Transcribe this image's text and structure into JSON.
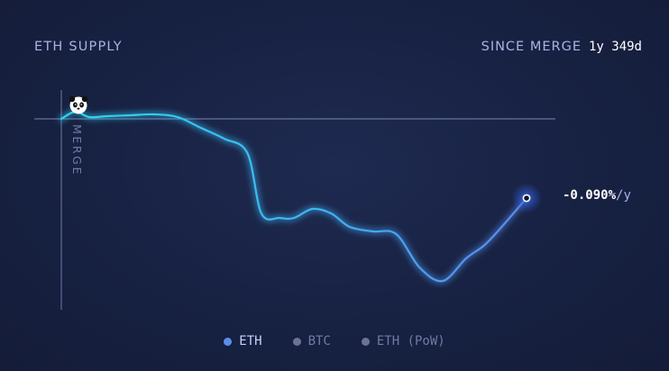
{
  "header": {
    "title": "ETH SUPPLY",
    "since_label": "SINCE MERGE",
    "since_value": "1y 349d"
  },
  "merge_label": "MERGE",
  "end_value": {
    "number": "-0.090%",
    "unit": "/y"
  },
  "legend": [
    {
      "label": "ETH",
      "active": true,
      "color": "#5b8fe8"
    },
    {
      "label": "BTC",
      "active": false,
      "color": "#6b7391"
    },
    {
      "label": "ETH (PoW)",
      "active": false,
      "color": "#6b7391"
    }
  ],
  "colors": {
    "line_start": "#2ed5f2",
    "line_end": "#5b8af0",
    "baseline": "#7a86b3",
    "glow": "#2f5fe0"
  },
  "icons": {
    "merge_marker": "panda-icon"
  },
  "chart_data": {
    "type": "line",
    "xlabel": "",
    "ylabel": "",
    "x": [
      0,
      0.03,
      0.06,
      0.1,
      0.15,
      0.2,
      0.25,
      0.3,
      0.35,
      0.4,
      0.43,
      0.47,
      0.5,
      0.54,
      0.58,
      0.62,
      0.67,
      0.72,
      0.77,
      0.82,
      0.87,
      0.91,
      0.95,
      1.0
    ],
    "series": [
      {
        "values": [
          0,
          0.08,
          0.02,
          0.03,
          0.04,
          0.05,
          0.02,
          -0.1,
          -0.22,
          -0.38,
          -1.05,
          -1.1,
          -1.1,
          -1.0,
          -1.05,
          -1.2,
          -1.25,
          -1.28,
          -1.65,
          -1.8,
          -1.55,
          -1.4,
          -1.18,
          -0.88
        ]
      }
    ]
  }
}
